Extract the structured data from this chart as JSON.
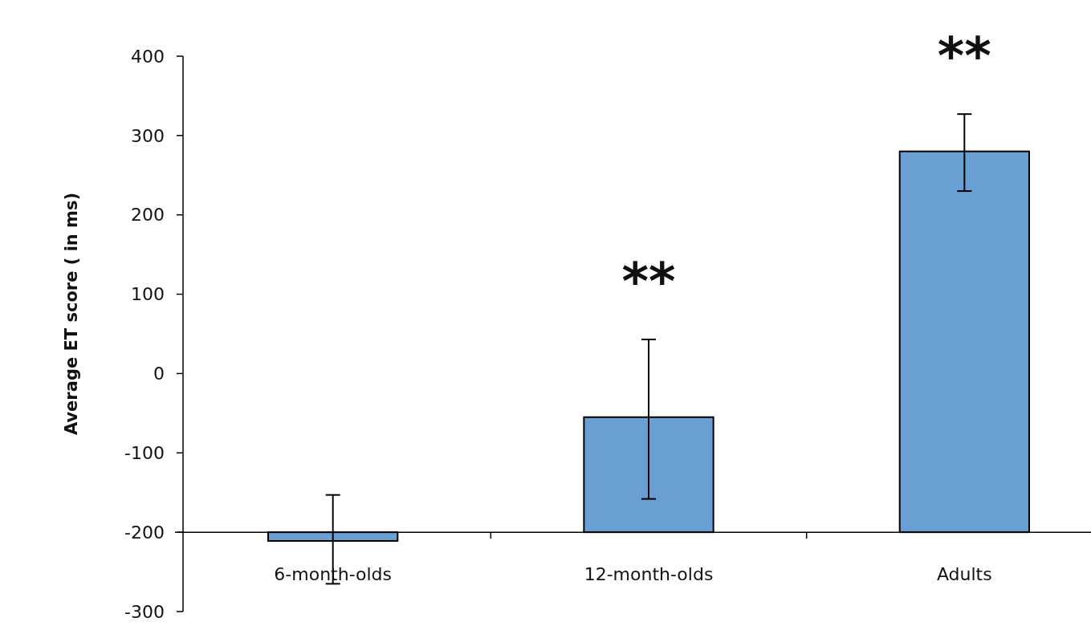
{
  "chart_data": {
    "type": "bar",
    "ylabel": "Average ET score ( in ms)",
    "categories": [
      "6-month-olds",
      "12-month-olds",
      "Adults"
    ],
    "base": [
      -200,
      -200,
      -200
    ],
    "values": [
      -11,
      145,
      480
    ],
    "errors": [
      [
        -265,
        -153
      ],
      [
        -158,
        43
      ],
      [
        230,
        327
      ]
    ],
    "color": "#6a9fd4",
    "ylim": [
      -300,
      400
    ],
    "yticks": [
      -300,
      -200,
      -100,
      0,
      100,
      200,
      300,
      400
    ],
    "annotations": [
      "**",
      "**"
    ],
    "grid": false
  }
}
